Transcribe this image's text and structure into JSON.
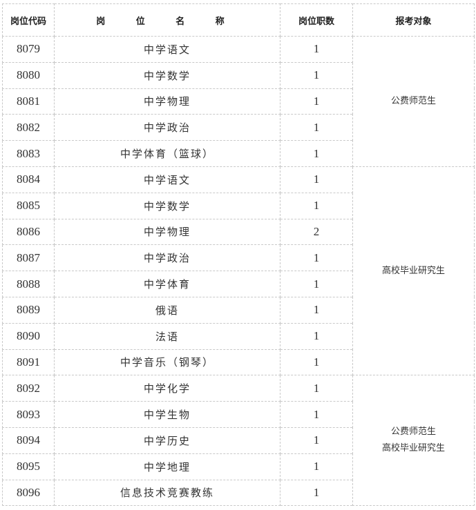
{
  "headers": {
    "code": "岗位代码",
    "name": "岗 位 名 称",
    "count": "岗位职数",
    "target": "报考对象"
  },
  "rows": [
    {
      "code": "8079",
      "name": "中学语文",
      "count": "1"
    },
    {
      "code": "8080",
      "name": "中学数学",
      "count": "1"
    },
    {
      "code": "8081",
      "name": "中学物理",
      "count": "1"
    },
    {
      "code": "8082",
      "name": "中学政治",
      "count": "1"
    },
    {
      "code": "8083",
      "name": "中学体育（篮球）",
      "count": "1"
    },
    {
      "code": "8084",
      "name": "中学语文",
      "count": "1"
    },
    {
      "code": "8085",
      "name": "中学数学",
      "count": "1"
    },
    {
      "code": "8086",
      "name": "中学物理",
      "count": "2"
    },
    {
      "code": "8087",
      "name": "中学政治",
      "count": "1"
    },
    {
      "code": "8088",
      "name": "中学体育",
      "count": "1"
    },
    {
      "code": "8089",
      "name": "俄语",
      "count": "1"
    },
    {
      "code": "8090",
      "name": "法语",
      "count": "1"
    },
    {
      "code": "8091",
      "name": "中学音乐（钢琴）",
      "count": "1"
    },
    {
      "code": "8092",
      "name": "中学化学",
      "count": "1"
    },
    {
      "code": "8093",
      "name": "中学生物",
      "count": "1"
    },
    {
      "code": "8094",
      "name": "中学历史",
      "count": "1"
    },
    {
      "code": "8095",
      "name": "中学地理",
      "count": "1"
    },
    {
      "code": "8096",
      "name": "信息技术竞赛教练",
      "count": "1"
    }
  ],
  "groups": [
    {
      "lines": [
        "公费师范生"
      ]
    },
    {
      "lines": [
        "高校毕业研究生"
      ]
    },
    {
      "lines": [
        "公费师范生",
        "高校毕业研究生"
      ]
    }
  ]
}
